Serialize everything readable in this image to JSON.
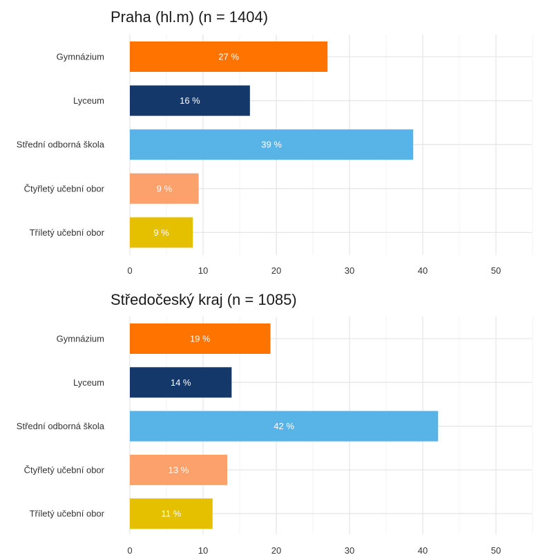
{
  "colors": {
    "Gymnázium": "#FF7300",
    "Lyceum": "#15386A",
    "Střední odborná škola": "#58B4E6",
    "Čtyřletý učební obor": "#FCA06C",
    "Tříletý učební obor": "#E5C000"
  },
  "chart_data": [
    {
      "type": "bar",
      "orientation": "horizontal",
      "title": "Praha (hl.m) (n = 1404)",
      "xlabel": "",
      "ylabel": "",
      "categories": [
        "Gymnázium",
        "Lyceum",
        "Střední odborná škola",
        "Čtyřletý učební obor",
        "Tříletý učební obor"
      ],
      "values": [
        27,
        16.4,
        38.7,
        9.4,
        8.6
      ],
      "labels": [
        "27 %",
        "16 %",
        "39 %",
        "9 %",
        "9 %"
      ],
      "xlim": [
        0,
        55
      ],
      "xticks": [
        0,
        10,
        20,
        30,
        40,
        50
      ],
      "grid": true
    },
    {
      "type": "bar",
      "orientation": "horizontal",
      "title": "Středočeský kraj (n = 1085)",
      "xlabel": "",
      "ylabel": "",
      "categories": [
        "Gymnázium",
        "Lyceum",
        "Střední odborná škola",
        "Čtyřletý učební obor",
        "Tříletý učební obor"
      ],
      "values": [
        19.2,
        13.9,
        42.1,
        13.3,
        11.3
      ],
      "labels": [
        "19 %",
        "14 %",
        "42 %",
        "13 %",
        "11 %"
      ],
      "xlim": [
        0,
        55
      ],
      "xticks": [
        0,
        10,
        20,
        30,
        40,
        50
      ],
      "grid": true
    }
  ]
}
